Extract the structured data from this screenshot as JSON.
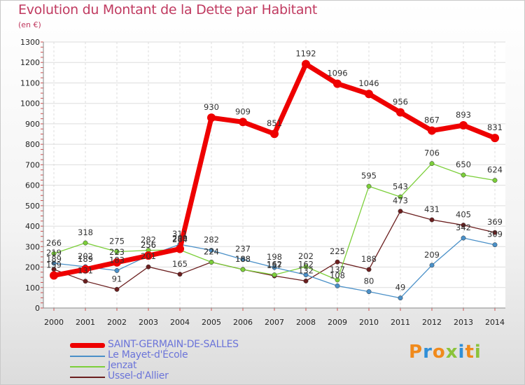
{
  "title": "Evolution du Montant de la Dette par Habitant",
  "subtitle": "(en €)",
  "logo": {
    "letters": [
      "P",
      "r",
      "o",
      "x",
      "i",
      "t",
      "i"
    ],
    "colors": [
      "#f08a1c",
      "#2f8fd8",
      "#f08a1c",
      "#8bc33a",
      "#2f8fd8",
      "#f08a1c",
      "#8bc33a"
    ]
  },
  "chart_data": {
    "type": "line",
    "title": "Evolution du Montant de la Dette par Habitant",
    "ylabel": "(en €)",
    "xlabel": "",
    "ylim": [
      0,
      1300
    ],
    "yticks": [
      0,
      100,
      200,
      300,
      400,
      500,
      600,
      700,
      800,
      900,
      1000,
      1100,
      1200,
      1300
    ],
    "x": [
      "2000",
      "2001",
      "2002",
      "2003",
      "2004",
      "2005",
      "2006",
      "2007",
      "2008",
      "2009",
      "2010",
      "2011",
      "2012",
      "2013",
      "2014"
    ],
    "series": [
      {
        "name": "SAINT-GERMAIN-DE-SALLES",
        "color": "#ee0000",
        "values": [
          159,
          189,
          223,
          256,
          289,
          930,
          909,
          851,
          1192,
          1096,
          1046,
          956,
          867,
          893,
          831
        ]
      },
      {
        "name": "Le Mayet-d'École",
        "color": "#4a90c8",
        "values": [
          219,
          202,
          183,
          256,
          311,
          282,
          237,
          198,
          162,
          108,
          80,
          49,
          209,
          342,
          309
        ]
      },
      {
        "name": "Jenzat",
        "color": "#7ccf3a",
        "values": [
          266,
          318,
          275,
          282,
          284,
          224,
          188,
          162,
          202,
          137,
          595,
          543,
          706,
          650,
          624
        ]
      },
      {
        "name": "Ussel-d'Allier",
        "color": "#6b1f1f",
        "values": [
          189,
          131,
          91,
          201,
          165,
          224,
          188,
          157,
          132,
          225,
          188,
          473,
          431,
          405,
          369
        ]
      }
    ]
  }
}
